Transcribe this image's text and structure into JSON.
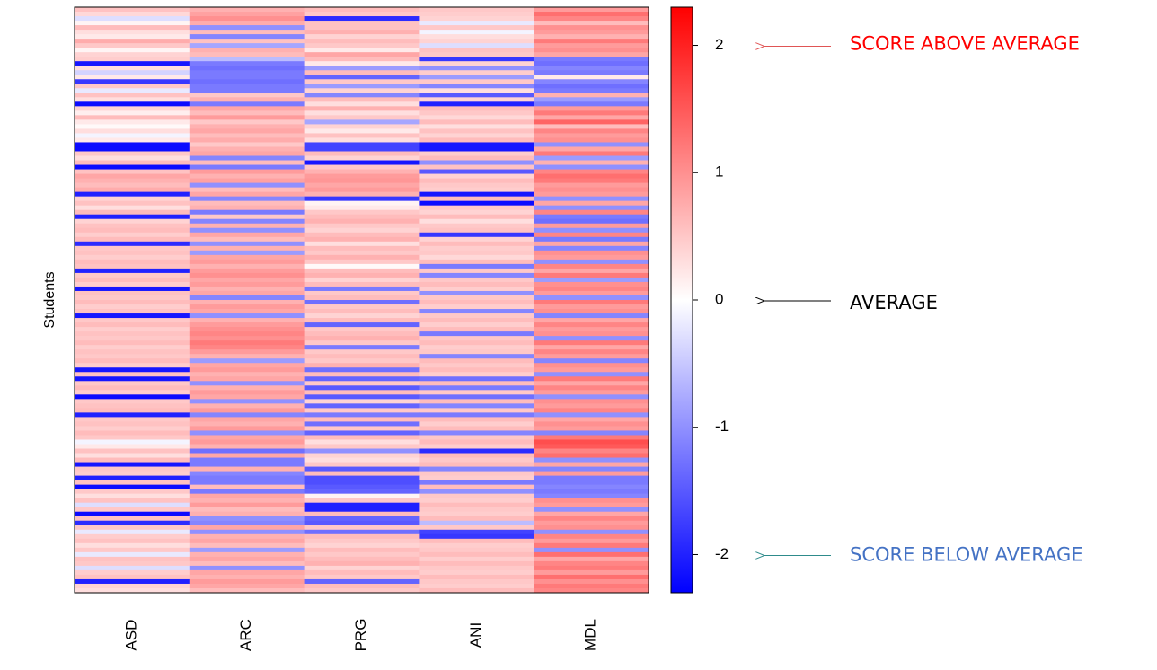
{
  "chart_data": {
    "type": "heatmap",
    "ylabel": "Students",
    "columns": [
      "ASD",
      "ARC",
      "PRG",
      "ANI",
      "MDL"
    ],
    "row_count": 130,
    "colorbar": {
      "ticks": [
        "2",
        "1",
        "0",
        "-1",
        "-2"
      ],
      "range": [
        -2.3,
        2.3
      ],
      "low_color": "#0000ff",
      "mid_color": "#ffffff",
      "high_color": "#ff0000"
    },
    "annotations": {
      "above": {
        "text": "SCORE ABOVE AVERAGE",
        "value": 2,
        "color": "#ff0000",
        "arrow_color": "#e05555"
      },
      "average": {
        "text": "AVERAGE",
        "value": 0,
        "color": "#000000",
        "arrow_color": "#000000"
      },
      "below": {
        "text": "SCORE BELOW AVERAGE",
        "value": -2,
        "color": "#4472c4",
        "arrow_color": "#2e8b8b"
      }
    },
    "values": [
      [
        0.55,
        0.7,
        0.6,
        0.5,
        0.9
      ],
      [
        0.35,
        0.85,
        0.5,
        0.45,
        1.3
      ],
      [
        -0.3,
        1.0,
        -1.9,
        0.4,
        1.1
      ],
      [
        0.1,
        0.75,
        0.55,
        -0.2,
        0.6
      ],
      [
        0.6,
        -1.0,
        0.55,
        0.5,
        1.0
      ],
      [
        0.3,
        0.6,
        0.7,
        -0.1,
        0.9
      ],
      [
        0.2,
        -1.1,
        0.4,
        0.3,
        0.7
      ],
      [
        0.75,
        0.55,
        0.6,
        0.4,
        1.2
      ],
      [
        0.5,
        -0.8,
        0.5,
        -0.3,
        0.9
      ],
      [
        0.1,
        0.7,
        0.2,
        0.55,
        1.0
      ],
      [
        0.4,
        0.6,
        0.8,
        0.5,
        0.8
      ],
      [
        0.45,
        -0.6,
        0.6,
        -1.8,
        -1.2
      ],
      [
        -2.1,
        -1.2,
        0.2,
        0.4,
        -1.3
      ],
      [
        0.3,
        -1.3,
        -0.9,
        -1.0,
        -1.1
      ],
      [
        -0.4,
        -1.2,
        0.6,
        0.45,
        -1.2
      ],
      [
        0.2,
        -1.2,
        -1.4,
        -0.9,
        0.2
      ],
      [
        -1.8,
        -1.3,
        0.5,
        0.5,
        -1.1
      ],
      [
        0.5,
        -1.2,
        -0.9,
        -1.1,
        -1.3
      ],
      [
        -0.2,
        -1.2,
        0.4,
        0.3,
        -1.2
      ],
      [
        0.55,
        0.5,
        -1.1,
        -1.5,
        0.7
      ],
      [
        0.3,
        0.7,
        0.6,
        0.4,
        -0.9
      ],
      [
        -2.2,
        -1.2,
        0.3,
        -2.0,
        -1.2
      ],
      [
        0.4,
        0.8,
        0.7,
        0.6,
        0.9
      ],
      [
        0.15,
        0.6,
        0.3,
        0.5,
        1.2
      ],
      [
        0.6,
        0.9,
        0.5,
        0.35,
        0.8
      ],
      [
        0.2,
        0.5,
        -0.8,
        0.6,
        1.4
      ],
      [
        0.05,
        0.7,
        0.4,
        0.3,
        0.6
      ],
      [
        0.3,
        0.8,
        0.2,
        0.55,
        1.1
      ],
      [
        -0.1,
        0.6,
        0.55,
        0.4,
        0.9
      ],
      [
        0.2,
        0.75,
        0.3,
        0.6,
        1.0
      ],
      [
        -2.2,
        0.5,
        -1.7,
        -2.1,
        -1.0
      ],
      [
        -2.2,
        0.7,
        -1.7,
        -2.1,
        0.8
      ],
      [
        0.5,
        0.8,
        0.6,
        0.45,
        1.2
      ],
      [
        0.3,
        -1.1,
        0.4,
        0.6,
        -0.9
      ],
      [
        0.6,
        0.6,
        -2.1,
        -1.0,
        0.7
      ],
      [
        -2.2,
        -1.2,
        0.5,
        0.55,
        -1.0
      ],
      [
        0.55,
        0.9,
        0.7,
        -1.5,
        1.1
      ],
      [
        0.8,
        0.7,
        0.9,
        0.4,
        1.3
      ],
      [
        0.7,
        0.85,
        0.95,
        0.6,
        1.2
      ],
      [
        0.6,
        -1.0,
        0.8,
        0.5,
        0.9
      ],
      [
        0.75,
        0.6,
        0.9,
        0.45,
        1.0
      ],
      [
        -2.0,
        0.8,
        0.7,
        -2.1,
        0.9
      ],
      [
        0.4,
        -1.1,
        -1.8,
        0.6,
        -1.0
      ],
      [
        0.55,
        0.6,
        0.1,
        -2.2,
        0.8
      ],
      [
        0.3,
        0.7,
        0.2,
        0.5,
        -1.0
      ],
      [
        0.6,
        -1.2,
        0.5,
        0.4,
        1.1
      ],
      [
        -2.0,
        0.5,
        0.6,
        0.6,
        -1.2
      ],
      [
        0.4,
        -1.1,
        0.7,
        0.3,
        -1.3
      ],
      [
        0.55,
        0.7,
        0.5,
        0.5,
        0.9
      ],
      [
        0.6,
        -1.0,
        0.4,
        0.55,
        -1.0
      ],
      [
        0.45,
        0.8,
        0.6,
        -1.8,
        1.1
      ],
      [
        0.6,
        0.6,
        0.7,
        0.4,
        -1.2
      ],
      [
        -1.9,
        -1.0,
        0.3,
        0.6,
        0.8
      ],
      [
        0.5,
        0.7,
        0.6,
        0.45,
        -1.1
      ],
      [
        0.55,
        -0.9,
        0.5,
        0.5,
        1.0
      ],
      [
        0.45,
        0.8,
        0.7,
        0.35,
        0.9
      ],
      [
        0.6,
        0.9,
        0.5,
        0.6,
        -1.0
      ],
      [
        0.55,
        0.7,
        0.05,
        -1.2,
        1.1
      ],
      [
        -2.0,
        0.9,
        0.6,
        0.5,
        0.8
      ],
      [
        0.5,
        1.0,
        0.7,
        -1.1,
        1.2
      ],
      [
        0.6,
        0.8,
        0.4,
        0.5,
        -0.9
      ],
      [
        0.45,
        0.9,
        0.6,
        0.6,
        1.0
      ],
      [
        -2.1,
        0.7,
        -1.2,
        0.45,
        1.1
      ],
      [
        0.55,
        0.8,
        0.5,
        -1.0,
        0.9
      ],
      [
        0.5,
        -1.1,
        0.6,
        0.5,
        -1.0
      ],
      [
        0.6,
        0.7,
        -1.3,
        0.6,
        1.2
      ],
      [
        0.45,
        0.9,
        0.5,
        0.45,
        0.9
      ],
      [
        0.55,
        0.8,
        0.6,
        -1.1,
        1.0
      ],
      [
        -2.1,
        -1.0,
        0.4,
        0.5,
        -1.1
      ],
      [
        0.5,
        0.7,
        0.6,
        0.6,
        0.8
      ],
      [
        0.6,
        0.9,
        -1.4,
        0.45,
        1.1
      ],
      [
        0.45,
        1.0,
        0.5,
        0.6,
        0.9
      ],
      [
        0.55,
        1.1,
        0.6,
        -1.2,
        1.0
      ],
      [
        0.5,
        1.0,
        0.7,
        0.5,
        -1.0
      ],
      [
        0.6,
        1.2,
        0.5,
        0.6,
        1.2
      ],
      [
        0.45,
        1.1,
        -1.2,
        0.45,
        0.8
      ],
      [
        0.55,
        0.9,
        0.5,
        0.5,
        1.1
      ],
      [
        0.5,
        0.7,
        0.6,
        -1.1,
        0.9
      ],
      [
        0.6,
        -0.9,
        0.5,
        0.6,
        -1.1
      ],
      [
        0.45,
        0.8,
        0.7,
        0.5,
        1.0
      ],
      [
        -2.1,
        0.9,
        -1.3,
        0.6,
        0.9
      ],
      [
        0.55,
        0.7,
        0.6,
        0.45,
        -1.0
      ],
      [
        -2.1,
        0.8,
        -1.4,
        -1.3,
        1.2
      ],
      [
        0.5,
        -1.0,
        0.5,
        0.6,
        0.8
      ],
      [
        0.6,
        0.7,
        -1.5,
        -1.2,
        1.1
      ],
      [
        0.45,
        0.9,
        0.6,
        0.5,
        0.9
      ],
      [
        -2.2,
        0.8,
        -1.5,
        -1.3,
        -1.0
      ],
      [
        0.5,
        -1.0,
        0.4,
        0.6,
        1.0
      ],
      [
        0.55,
        0.7,
        -1.4,
        -1.1,
        0.9
      ],
      [
        0.6,
        0.9,
        0.5,
        0.5,
        1.1
      ],
      [
        -2.0,
        -1.1,
        -1.2,
        -1.2,
        -1.0
      ],
      [
        0.5,
        0.8,
        0.6,
        0.6,
        0.8
      ],
      [
        0.55,
        0.7,
        -1.3,
        0.45,
        1.0
      ],
      [
        0.45,
        0.9,
        0.5,
        0.6,
        0.9
      ],
      [
        0.6,
        -1.0,
        -1.4,
        -1.1,
        -1.1
      ],
      [
        0.5,
        0.8,
        0.6,
        0.5,
        1.2
      ],
      [
        -0.1,
        0.9,
        0.3,
        0.6,
        1.6
      ],
      [
        0.2,
        0.7,
        0.5,
        0.45,
        1.5
      ],
      [
        0.55,
        -1.3,
        -1.0,
        -1.9,
        1.1
      ],
      [
        0.3,
        0.8,
        0.4,
        0.6,
        1.3
      ],
      [
        0.6,
        -1.2,
        0.3,
        0.5,
        -1.0
      ],
      [
        -2.1,
        -1.2,
        0.5,
        0.6,
        0.8
      ],
      [
        0.5,
        0.7,
        -1.5,
        -1.1,
        -1.1
      ],
      [
        0.45,
        -1.1,
        0.6,
        0.5,
        0.9
      ],
      [
        -2.0,
        -1.2,
        -1.6,
        0.45,
        -1.2
      ],
      [
        0.55,
        -1.2,
        -1.6,
        -1.2,
        -1.2
      ],
      [
        -2.2,
        0.6,
        -1.5,
        0.6,
        -1.1
      ],
      [
        0.5,
        -1.2,
        -1.4,
        -1.0,
        -1.2
      ],
      [
        0.3,
        0.8,
        0.1,
        0.5,
        -1.1
      ],
      [
        0.55,
        0.7,
        0.5,
        0.45,
        1.0
      ],
      [
        -0.3,
        0.9,
        -2.0,
        0.6,
        0.9
      ],
      [
        0.5,
        0.6,
        -2.0,
        0.5,
        -1.0
      ],
      [
        -2.2,
        0.7,
        0.6,
        0.45,
        0.8
      ],
      [
        0.55,
        -1.0,
        -1.4,
        0.6,
        1.1
      ],
      [
        -1.9,
        -1.1,
        -1.5,
        -0.6,
        0.9
      ],
      [
        0.5,
        0.8,
        0.5,
        0.5,
        1.0
      ],
      [
        -0.2,
        -1.0,
        -1.3,
        -1.7,
        -1.0
      ],
      [
        0.45,
        0.7,
        0.6,
        -1.8,
        1.1
      ],
      [
        0.55,
        0.8,
        0.5,
        0.6,
        0.9
      ],
      [
        0.3,
        0.6,
        0.4,
        0.45,
        1.2
      ],
      [
        0.5,
        -0.9,
        0.6,
        0.5,
        -1.0
      ],
      [
        -0.2,
        0.7,
        0.5,
        0.6,
        1.3
      ],
      [
        0.55,
        0.8,
        0.6,
        0.45,
        0.8
      ],
      [
        0.5,
        0.6,
        0.7,
        0.6,
        1.1
      ],
      [
        -0.3,
        -1.0,
        0.4,
        0.5,
        1.2
      ],
      [
        0.45,
        0.8,
        0.6,
        0.45,
        0.9
      ],
      [
        0.55,
        0.7,
        0.5,
        0.6,
        1.3
      ],
      [
        -2.0,
        0.9,
        -1.4,
        0.5,
        1.0
      ],
      [
        0.4,
        0.8,
        0.6,
        0.45,
        1.2
      ],
      [
        0.3,
        0.6,
        0.5,
        0.6,
        1.1
      ]
    ]
  }
}
